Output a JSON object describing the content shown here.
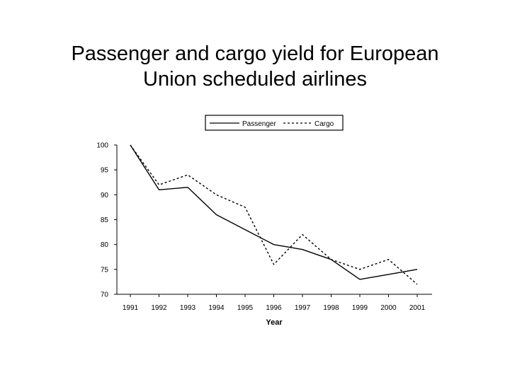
{
  "title": {
    "line1": "Passenger and cargo yield for European",
    "line2": "Union scheduled airlines"
  },
  "chart_data": {
    "type": "line",
    "title": "Passenger and cargo yield for European Union scheduled airlines",
    "xlabel": "Year",
    "ylabel": "",
    "categories": [
      "1991",
      "1992",
      "1993",
      "1994",
      "1995",
      "1996",
      "1997",
      "1998",
      "1999",
      "2000",
      "2001"
    ],
    "ylim": [
      70,
      100
    ],
    "yticks": [
      70,
      75,
      80,
      85,
      90,
      95,
      100
    ],
    "grid": false,
    "legend_position": "top",
    "series": [
      {
        "name": "Passenger",
        "style": "solid",
        "color": "#000000",
        "values": [
          100,
          91,
          91.5,
          86,
          83,
          80,
          79,
          77,
          73,
          74,
          75
        ]
      },
      {
        "name": "Cargo",
        "style": "dashed",
        "color": "#000000",
        "values": [
          100,
          92,
          94,
          90,
          87.5,
          76,
          82,
          77,
          75,
          77,
          72
        ]
      }
    ]
  }
}
